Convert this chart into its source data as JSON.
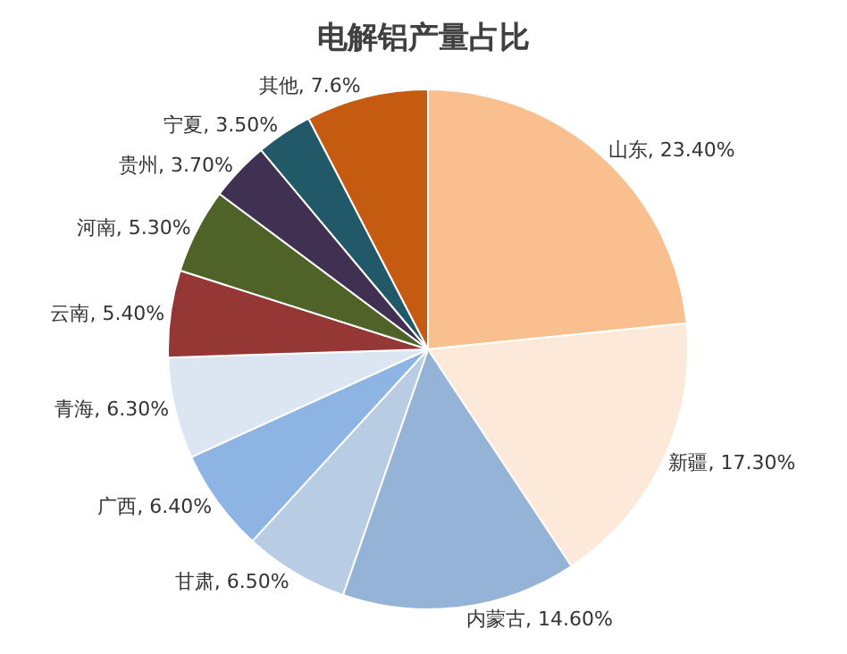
{
  "chart_data": {
    "type": "pie",
    "title": "电解铝产量占比",
    "categories": [
      "山东",
      "新疆",
      "内蒙古",
      "甘肃",
      "广西",
      "青海",
      "云南",
      "河南",
      "贵州",
      "宁夏",
      "其他"
    ],
    "values": [
      23.4,
      17.3,
      14.6,
      6.5,
      6.4,
      6.3,
      5.4,
      5.3,
      3.7,
      3.5,
      7.6
    ],
    "value_labels": [
      "23.40%",
      "17.30%",
      "14.60%",
      "6.50%",
      "6.40%",
      "6.30%",
      "5.40%",
      "5.30%",
      "3.70%",
      "3.50%",
      "7.6%"
    ],
    "colors": [
      "#fabf8f",
      "#fde9d9",
      "#95b3d7",
      "#b8cce4",
      "#8db4e2",
      "#dce6f2",
      "#953735",
      "#4f6228",
      "#403152",
      "#215968",
      "#c55a11"
    ]
  }
}
